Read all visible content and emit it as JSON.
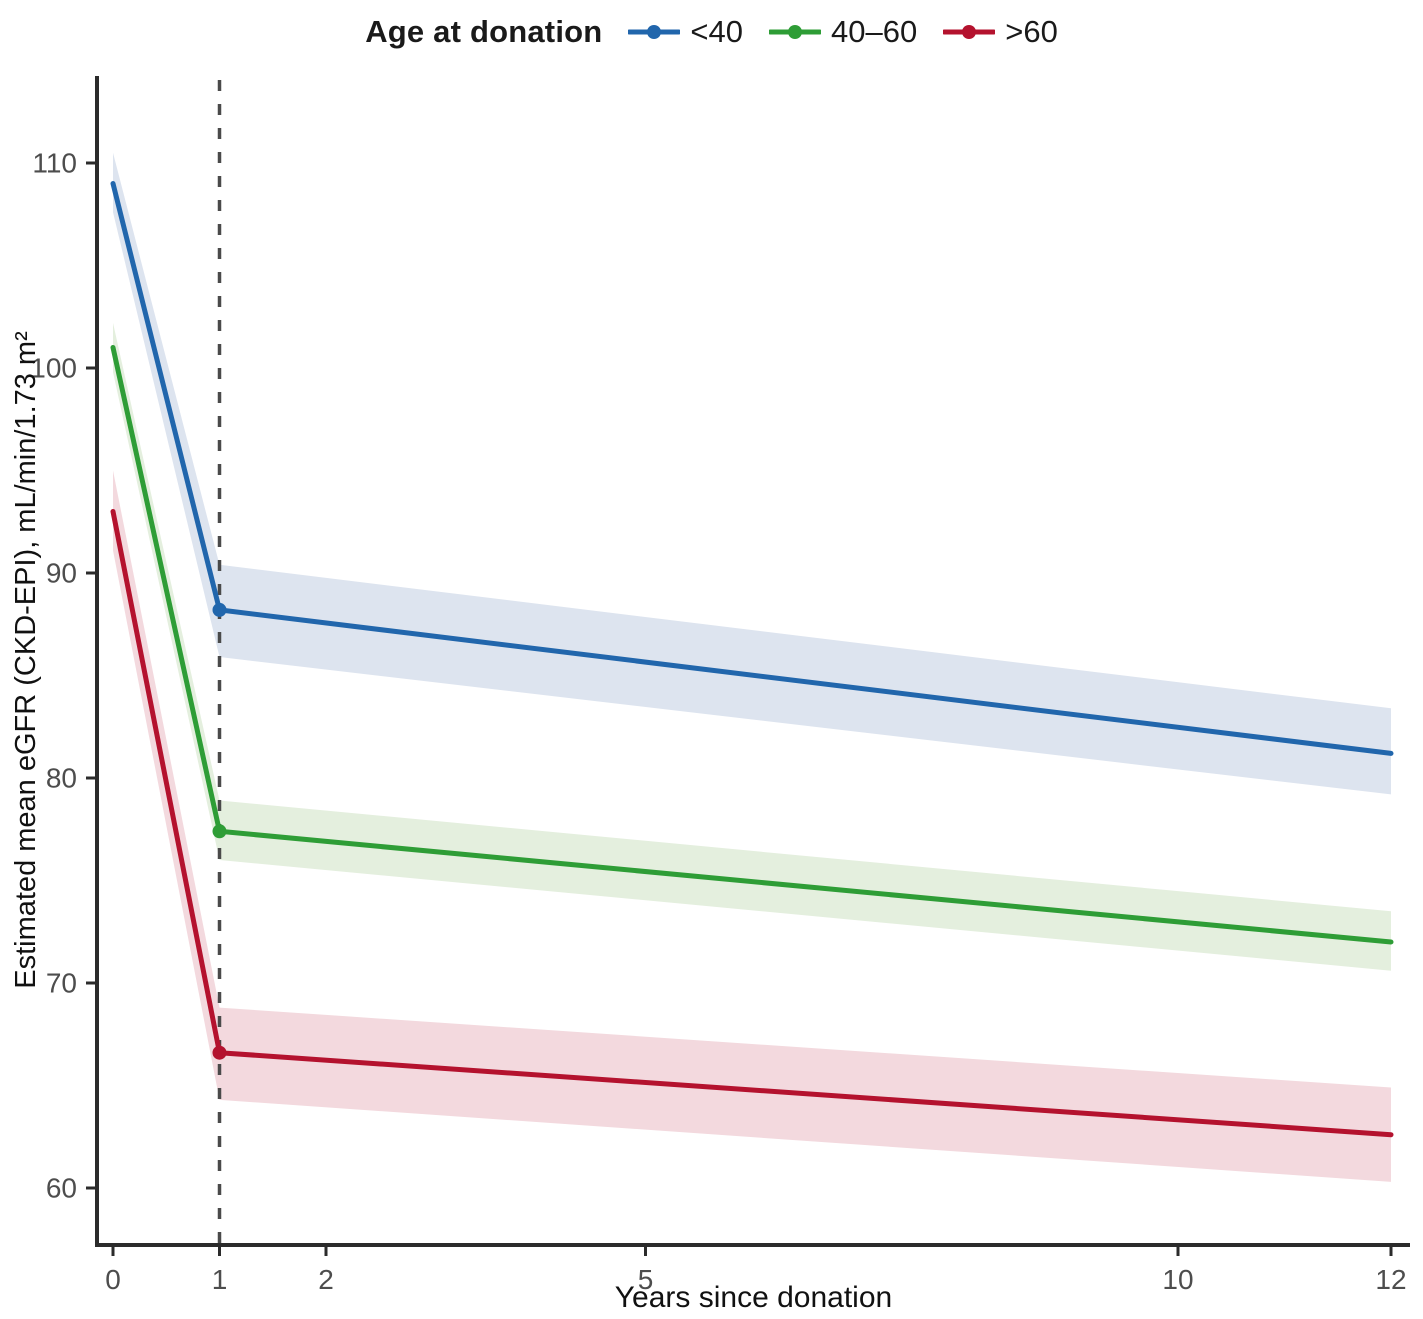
{
  "chart_data": {
    "type": "line",
    "title": "",
    "xlabel": "Years since donation",
    "ylabel": "Estimated mean eGFR (CKD-EPI), mL/min/1.73 m²",
    "legend_title": "Age at donation",
    "legend_position": "top-center",
    "grid": false,
    "xlim": [
      -0.15,
      12.18
    ],
    "ylim": [
      57.2,
      114.1
    ],
    "x_ticks": [
      0,
      1,
      2,
      5,
      10,
      12
    ],
    "y_ticks": [
      60,
      70,
      80,
      90,
      100,
      110
    ],
    "vline": {
      "x": 1,
      "style": "dashed",
      "color": "#4a4a4a"
    },
    "series": [
      {
        "name": "<40",
        "color": "#2166ac",
        "band_color": "#dde4ef",
        "x": [
          0,
          1,
          12
        ],
        "mean": [
          109.0,
          88.2,
          81.2
        ],
        "lower": [
          107.6,
          85.9,
          79.2
        ],
        "upper": [
          110.5,
          90.4,
          83.4
        ],
        "marker_at": [
          1
        ]
      },
      {
        "name": "40–60",
        "color": "#2e9d36",
        "band_color": "#e4efde",
        "x": [
          0,
          1,
          12
        ],
        "mean": [
          101.0,
          77.4,
          72.0
        ],
        "lower": [
          99.8,
          76.0,
          70.6
        ],
        "upper": [
          102.2,
          78.9,
          73.5
        ],
        "marker_at": [
          1
        ]
      },
      {
        "name": ">60",
        "color": "#b4122e",
        "band_color": "#f3d9de",
        "x": [
          0,
          1,
          12
        ],
        "mean": [
          93.0,
          66.6,
          62.6
        ],
        "lower": [
          91.1,
          64.3,
          60.3
        ],
        "upper": [
          95.0,
          68.8,
          64.9
        ],
        "marker_at": [
          1
        ]
      }
    ]
  }
}
